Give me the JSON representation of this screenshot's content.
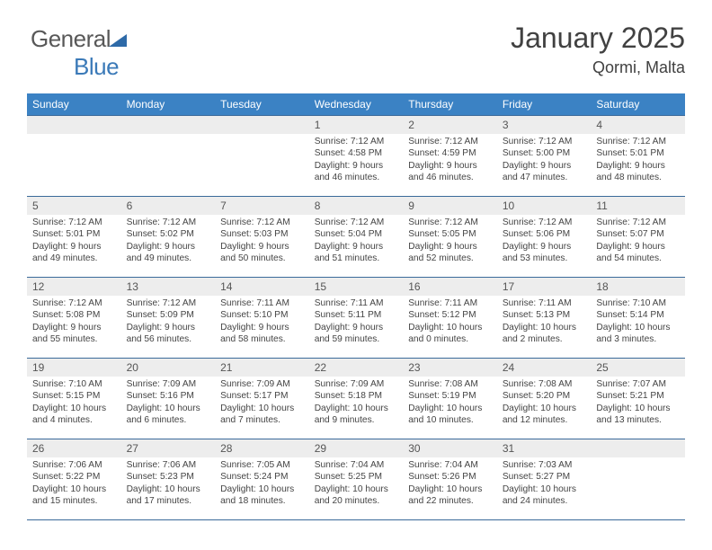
{
  "logo": {
    "text_a": "General",
    "text_b": "Blue"
  },
  "header": {
    "title": "January 2025",
    "subtitle": "Qormi, Malta"
  },
  "style": {
    "header_bg": "#3b82c4",
    "header_fg": "#ffffff",
    "border_color": "#3b6a9a",
    "daynum_bg": "#ededed",
    "page_bg": "#ffffff",
    "text_color": "#414141",
    "logo_blue": "#3b7ab8",
    "title_fontsize": 32,
    "subtitle_fontsize": 18,
    "dayheader_fontsize": 12,
    "cell_fontsize": 10.2
  },
  "days_of_week": [
    "Sunday",
    "Monday",
    "Tuesday",
    "Wednesday",
    "Thursday",
    "Friday",
    "Saturday"
  ],
  "weeks": [
    [
      null,
      null,
      null,
      {
        "n": "1",
        "sunrise": "7:12 AM",
        "sunset": "4:58 PM",
        "daylight": "9 hours and 46 minutes."
      },
      {
        "n": "2",
        "sunrise": "7:12 AM",
        "sunset": "4:59 PM",
        "daylight": "9 hours and 46 minutes."
      },
      {
        "n": "3",
        "sunrise": "7:12 AM",
        "sunset": "5:00 PM",
        "daylight": "9 hours and 47 minutes."
      },
      {
        "n": "4",
        "sunrise": "7:12 AM",
        "sunset": "5:01 PM",
        "daylight": "9 hours and 48 minutes."
      }
    ],
    [
      {
        "n": "5",
        "sunrise": "7:12 AM",
        "sunset": "5:01 PM",
        "daylight": "9 hours and 49 minutes."
      },
      {
        "n": "6",
        "sunrise": "7:12 AM",
        "sunset": "5:02 PM",
        "daylight": "9 hours and 49 minutes."
      },
      {
        "n": "7",
        "sunrise": "7:12 AM",
        "sunset": "5:03 PM",
        "daylight": "9 hours and 50 minutes."
      },
      {
        "n": "8",
        "sunrise": "7:12 AM",
        "sunset": "5:04 PM",
        "daylight": "9 hours and 51 minutes."
      },
      {
        "n": "9",
        "sunrise": "7:12 AM",
        "sunset": "5:05 PM",
        "daylight": "9 hours and 52 minutes."
      },
      {
        "n": "10",
        "sunrise": "7:12 AM",
        "sunset": "5:06 PM",
        "daylight": "9 hours and 53 minutes."
      },
      {
        "n": "11",
        "sunrise": "7:12 AM",
        "sunset": "5:07 PM",
        "daylight": "9 hours and 54 minutes."
      }
    ],
    [
      {
        "n": "12",
        "sunrise": "7:12 AM",
        "sunset": "5:08 PM",
        "daylight": "9 hours and 55 minutes."
      },
      {
        "n": "13",
        "sunrise": "7:12 AM",
        "sunset": "5:09 PM",
        "daylight": "9 hours and 56 minutes."
      },
      {
        "n": "14",
        "sunrise": "7:11 AM",
        "sunset": "5:10 PM",
        "daylight": "9 hours and 58 minutes."
      },
      {
        "n": "15",
        "sunrise": "7:11 AM",
        "sunset": "5:11 PM",
        "daylight": "9 hours and 59 minutes."
      },
      {
        "n": "16",
        "sunrise": "7:11 AM",
        "sunset": "5:12 PM",
        "daylight": "10 hours and 0 minutes."
      },
      {
        "n": "17",
        "sunrise": "7:11 AM",
        "sunset": "5:13 PM",
        "daylight": "10 hours and 2 minutes."
      },
      {
        "n": "18",
        "sunrise": "7:10 AM",
        "sunset": "5:14 PM",
        "daylight": "10 hours and 3 minutes."
      }
    ],
    [
      {
        "n": "19",
        "sunrise": "7:10 AM",
        "sunset": "5:15 PM",
        "daylight": "10 hours and 4 minutes."
      },
      {
        "n": "20",
        "sunrise": "7:09 AM",
        "sunset": "5:16 PM",
        "daylight": "10 hours and 6 minutes."
      },
      {
        "n": "21",
        "sunrise": "7:09 AM",
        "sunset": "5:17 PM",
        "daylight": "10 hours and 7 minutes."
      },
      {
        "n": "22",
        "sunrise": "7:09 AM",
        "sunset": "5:18 PM",
        "daylight": "10 hours and 9 minutes."
      },
      {
        "n": "23",
        "sunrise": "7:08 AM",
        "sunset": "5:19 PM",
        "daylight": "10 hours and 10 minutes."
      },
      {
        "n": "24",
        "sunrise": "7:08 AM",
        "sunset": "5:20 PM",
        "daylight": "10 hours and 12 minutes."
      },
      {
        "n": "25",
        "sunrise": "7:07 AM",
        "sunset": "5:21 PM",
        "daylight": "10 hours and 13 minutes."
      }
    ],
    [
      {
        "n": "26",
        "sunrise": "7:06 AM",
        "sunset": "5:22 PM",
        "daylight": "10 hours and 15 minutes."
      },
      {
        "n": "27",
        "sunrise": "7:06 AM",
        "sunset": "5:23 PM",
        "daylight": "10 hours and 17 minutes."
      },
      {
        "n": "28",
        "sunrise": "7:05 AM",
        "sunset": "5:24 PM",
        "daylight": "10 hours and 18 minutes."
      },
      {
        "n": "29",
        "sunrise": "7:04 AM",
        "sunset": "5:25 PM",
        "daylight": "10 hours and 20 minutes."
      },
      {
        "n": "30",
        "sunrise": "7:04 AM",
        "sunset": "5:26 PM",
        "daylight": "10 hours and 22 minutes."
      },
      {
        "n": "31",
        "sunrise": "7:03 AM",
        "sunset": "5:27 PM",
        "daylight": "10 hours and 24 minutes."
      },
      null
    ]
  ],
  "labels": {
    "sunrise": "Sunrise:",
    "sunset": "Sunset:",
    "daylight": "Daylight:"
  }
}
